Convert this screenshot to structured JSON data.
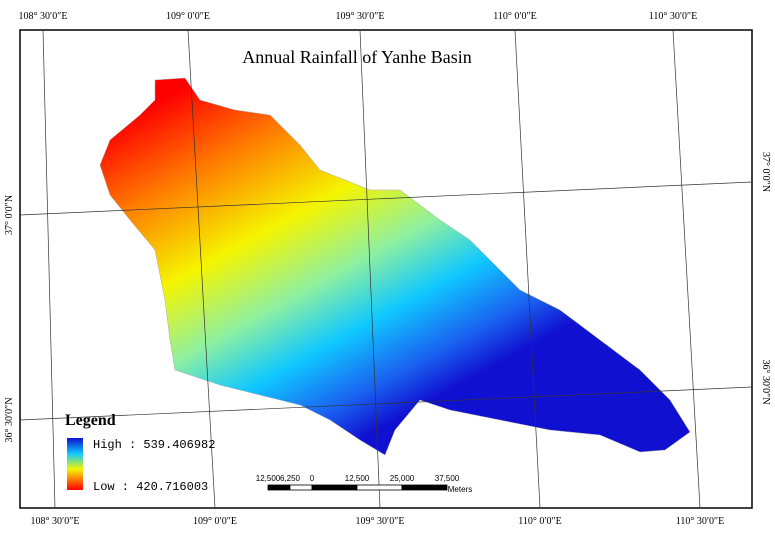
{
  "title": "Annual Rainfall of Yanhe Basin",
  "graticule": {
    "top": [
      "108° 30′0″E",
      "109° 0′0″E",
      "109° 30′0″E",
      "110° 0′0″E",
      "110° 30′0″E"
    ],
    "bottom": [
      "108° 30′0″E",
      "109° 0′0″E",
      "109° 30′0″E",
      "110° 0′0″E",
      "110° 30′0″E"
    ],
    "left": [
      "37° 0′0″N",
      "36° 30′0″N"
    ],
    "right": [
      "37° 0′0″N",
      "36° 30′0″N"
    ]
  },
  "legend": {
    "title": "Legend",
    "high": "High : 539.406982",
    "low": "Low : 420.716003"
  },
  "scale_bar": {
    "labels": [
      "12,500",
      "6,250",
      "0",
      "12,500",
      "25,000",
      "37,500"
    ],
    "unit": "Meters"
  }
}
